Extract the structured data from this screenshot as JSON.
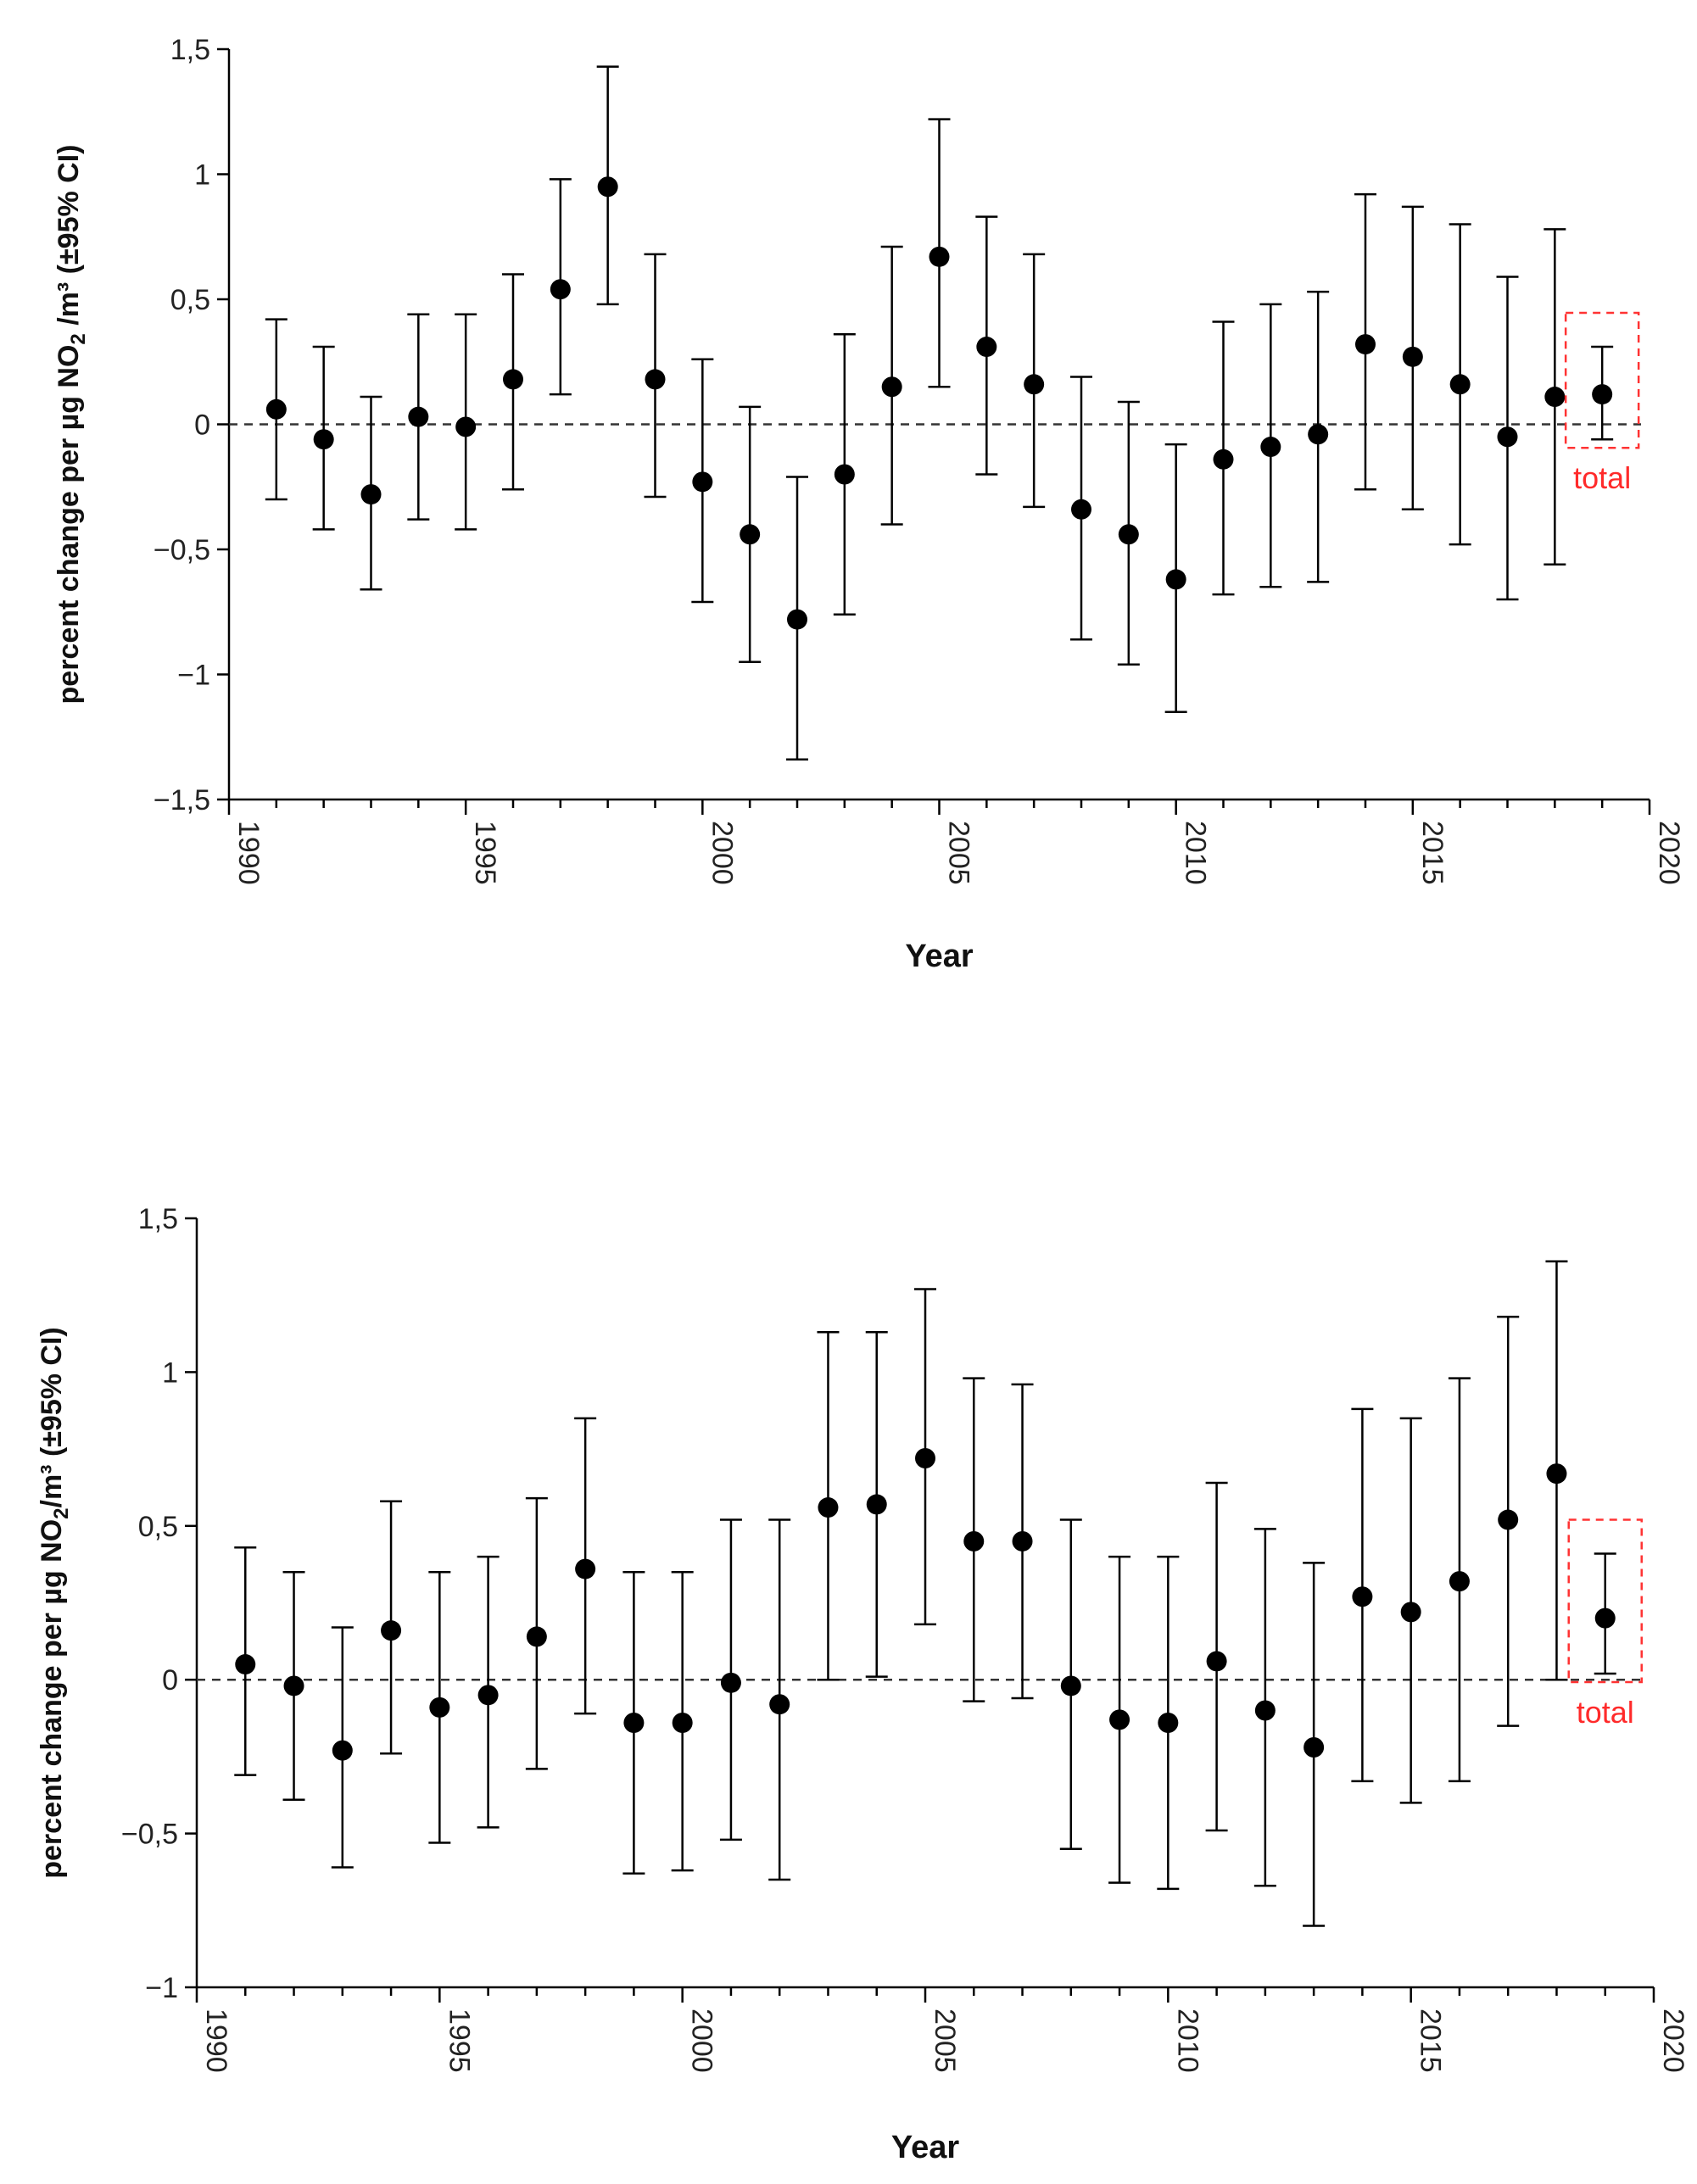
{
  "chart_data": [
    {
      "type": "scatter",
      "xlabel": "Year",
      "ylabel": "percent change per µg NO₂ /m³ (±95% CI)",
      "ylabel_parts": {
        "pre": "percent change per µg NO",
        "sub": "2",
        "post": " /m³ (±95% CI)"
      },
      "xlim": [
        1990,
        2020
      ],
      "ylim": [
        -1.5,
        1.5
      ],
      "xticks": [
        1990,
        1995,
        2000,
        2005,
        2010,
        2015,
        2020
      ],
      "xtick_labels": [
        "1990",
        "1995",
        "2000",
        "2005",
        "2010",
        "2015",
        "2020"
      ],
      "yticks": [
        -1.5,
        -1,
        -0.5,
        0,
        0.5,
        1,
        1.5
      ],
      "ytick_labels": [
        "−1,5",
        "−1",
        "−0,5",
        "0",
        "0,5",
        "1",
        "1,5"
      ],
      "reference_line": 0,
      "total_label": "total",
      "x": [
        1991,
        1992,
        1993,
        1994,
        1995,
        1996,
        1997,
        1998,
        1999,
        2000,
        2001,
        2002,
        2003,
        2004,
        2005,
        2006,
        2007,
        2008,
        2009,
        2010,
        2011,
        2012,
        2013,
        2014,
        2015,
        2016,
        2017,
        2018,
        2019
      ],
      "values": [
        0.06,
        -0.06,
        -0.28,
        0.03,
        -0.01,
        0.18,
        0.54,
        0.95,
        0.18,
        -0.23,
        -0.44,
        -0.78,
        -0.2,
        0.15,
        0.67,
        0.31,
        0.16,
        -0.34,
        -0.44,
        -0.62,
        -0.14,
        -0.09,
        -0.04,
        0.32,
        0.27,
        0.16,
        -0.05,
        0.11,
        0.12
      ],
      "ci_lower": [
        -0.3,
        -0.42,
        -0.66,
        -0.38,
        -0.42,
        -0.26,
        0.12,
        0.48,
        -0.29,
        -0.71,
        -0.95,
        -1.34,
        -0.76,
        -0.4,
        0.15,
        -0.2,
        -0.33,
        -0.86,
        -0.96,
        -1.15,
        -0.68,
        -0.65,
        -0.63,
        -0.26,
        -0.34,
        -0.48,
        -0.7,
        -0.56,
        -0.06
      ],
      "ci_upper": [
        0.42,
        0.31,
        0.11,
        0.44,
        0.44,
        0.6,
        0.98,
        1.43,
        0.68,
        0.26,
        0.07,
        -0.21,
        0.36,
        0.71,
        1.22,
        0.83,
        0.68,
        0.19,
        0.09,
        -0.08,
        0.41,
        0.48,
        0.53,
        0.92,
        0.87,
        0.8,
        0.59,
        0.78,
        0.31
      ],
      "total_index": 28
    },
    {
      "type": "scatter",
      "xlabel": "Year",
      "ylabel": "percent change per µg NO₂/m³ (±95% CI)",
      "ylabel_parts": {
        "pre": "percent change per µg NO",
        "sub": "2",
        "post": "/m³ (±95% CI)"
      },
      "xlim": [
        1990,
        2020
      ],
      "ylim": [
        -1,
        1.5
      ],
      "xticks": [
        1990,
        1995,
        2000,
        2005,
        2010,
        2015,
        2020
      ],
      "xtick_labels": [
        "1990",
        "1995",
        "2000",
        "2005",
        "2010",
        "2015",
        "2020"
      ],
      "yticks": [
        -1,
        -0.5,
        0,
        0.5,
        1,
        1.5
      ],
      "ytick_labels": [
        "−1",
        "−0,5",
        "0",
        "0,5",
        "1",
        "1,5"
      ],
      "reference_line": 0,
      "total_label": "total",
      "x": [
        1991,
        1992,
        1993,
        1994,
        1995,
        1996,
        1997,
        1998,
        1999,
        2000,
        2001,
        2002,
        2003,
        2004,
        2005,
        2006,
        2007,
        2008,
        2009,
        2010,
        2011,
        2012,
        2013,
        2014,
        2015,
        2016,
        2017,
        2018,
        2019
      ],
      "values": [
        0.05,
        -0.02,
        -0.23,
        0.16,
        -0.09,
        -0.05,
        0.14,
        0.36,
        -0.14,
        -0.14,
        -0.01,
        -0.08,
        0.56,
        0.57,
        0.72,
        0.45,
        0.45,
        -0.02,
        -0.13,
        -0.14,
        0.06,
        -0.1,
        -0.22,
        0.27,
        0.22,
        0.32,
        0.52,
        0.67,
        0.2
      ],
      "ci_lower": [
        -0.31,
        -0.39,
        -0.61,
        -0.24,
        -0.53,
        -0.48,
        -0.29,
        -0.11,
        -0.63,
        -0.62,
        -0.52,
        -0.65,
        0.0,
        0.01,
        0.18,
        -0.07,
        -0.06,
        -0.55,
        -0.66,
        -0.68,
        -0.49,
        -0.67,
        -0.8,
        -0.33,
        -0.4,
        -0.33,
        -0.15,
        0.0,
        0.02
      ],
      "ci_upper": [
        0.43,
        0.35,
        0.17,
        0.58,
        0.35,
        0.4,
        0.59,
        0.85,
        0.35,
        0.35,
        0.52,
        0.52,
        1.13,
        1.13,
        1.27,
        0.98,
        0.96,
        0.52,
        0.4,
        0.4,
        0.64,
        0.49,
        0.38,
        0.88,
        0.85,
        0.98,
        1.18,
        1.36,
        0.41
      ],
      "total_index": 28
    }
  ]
}
